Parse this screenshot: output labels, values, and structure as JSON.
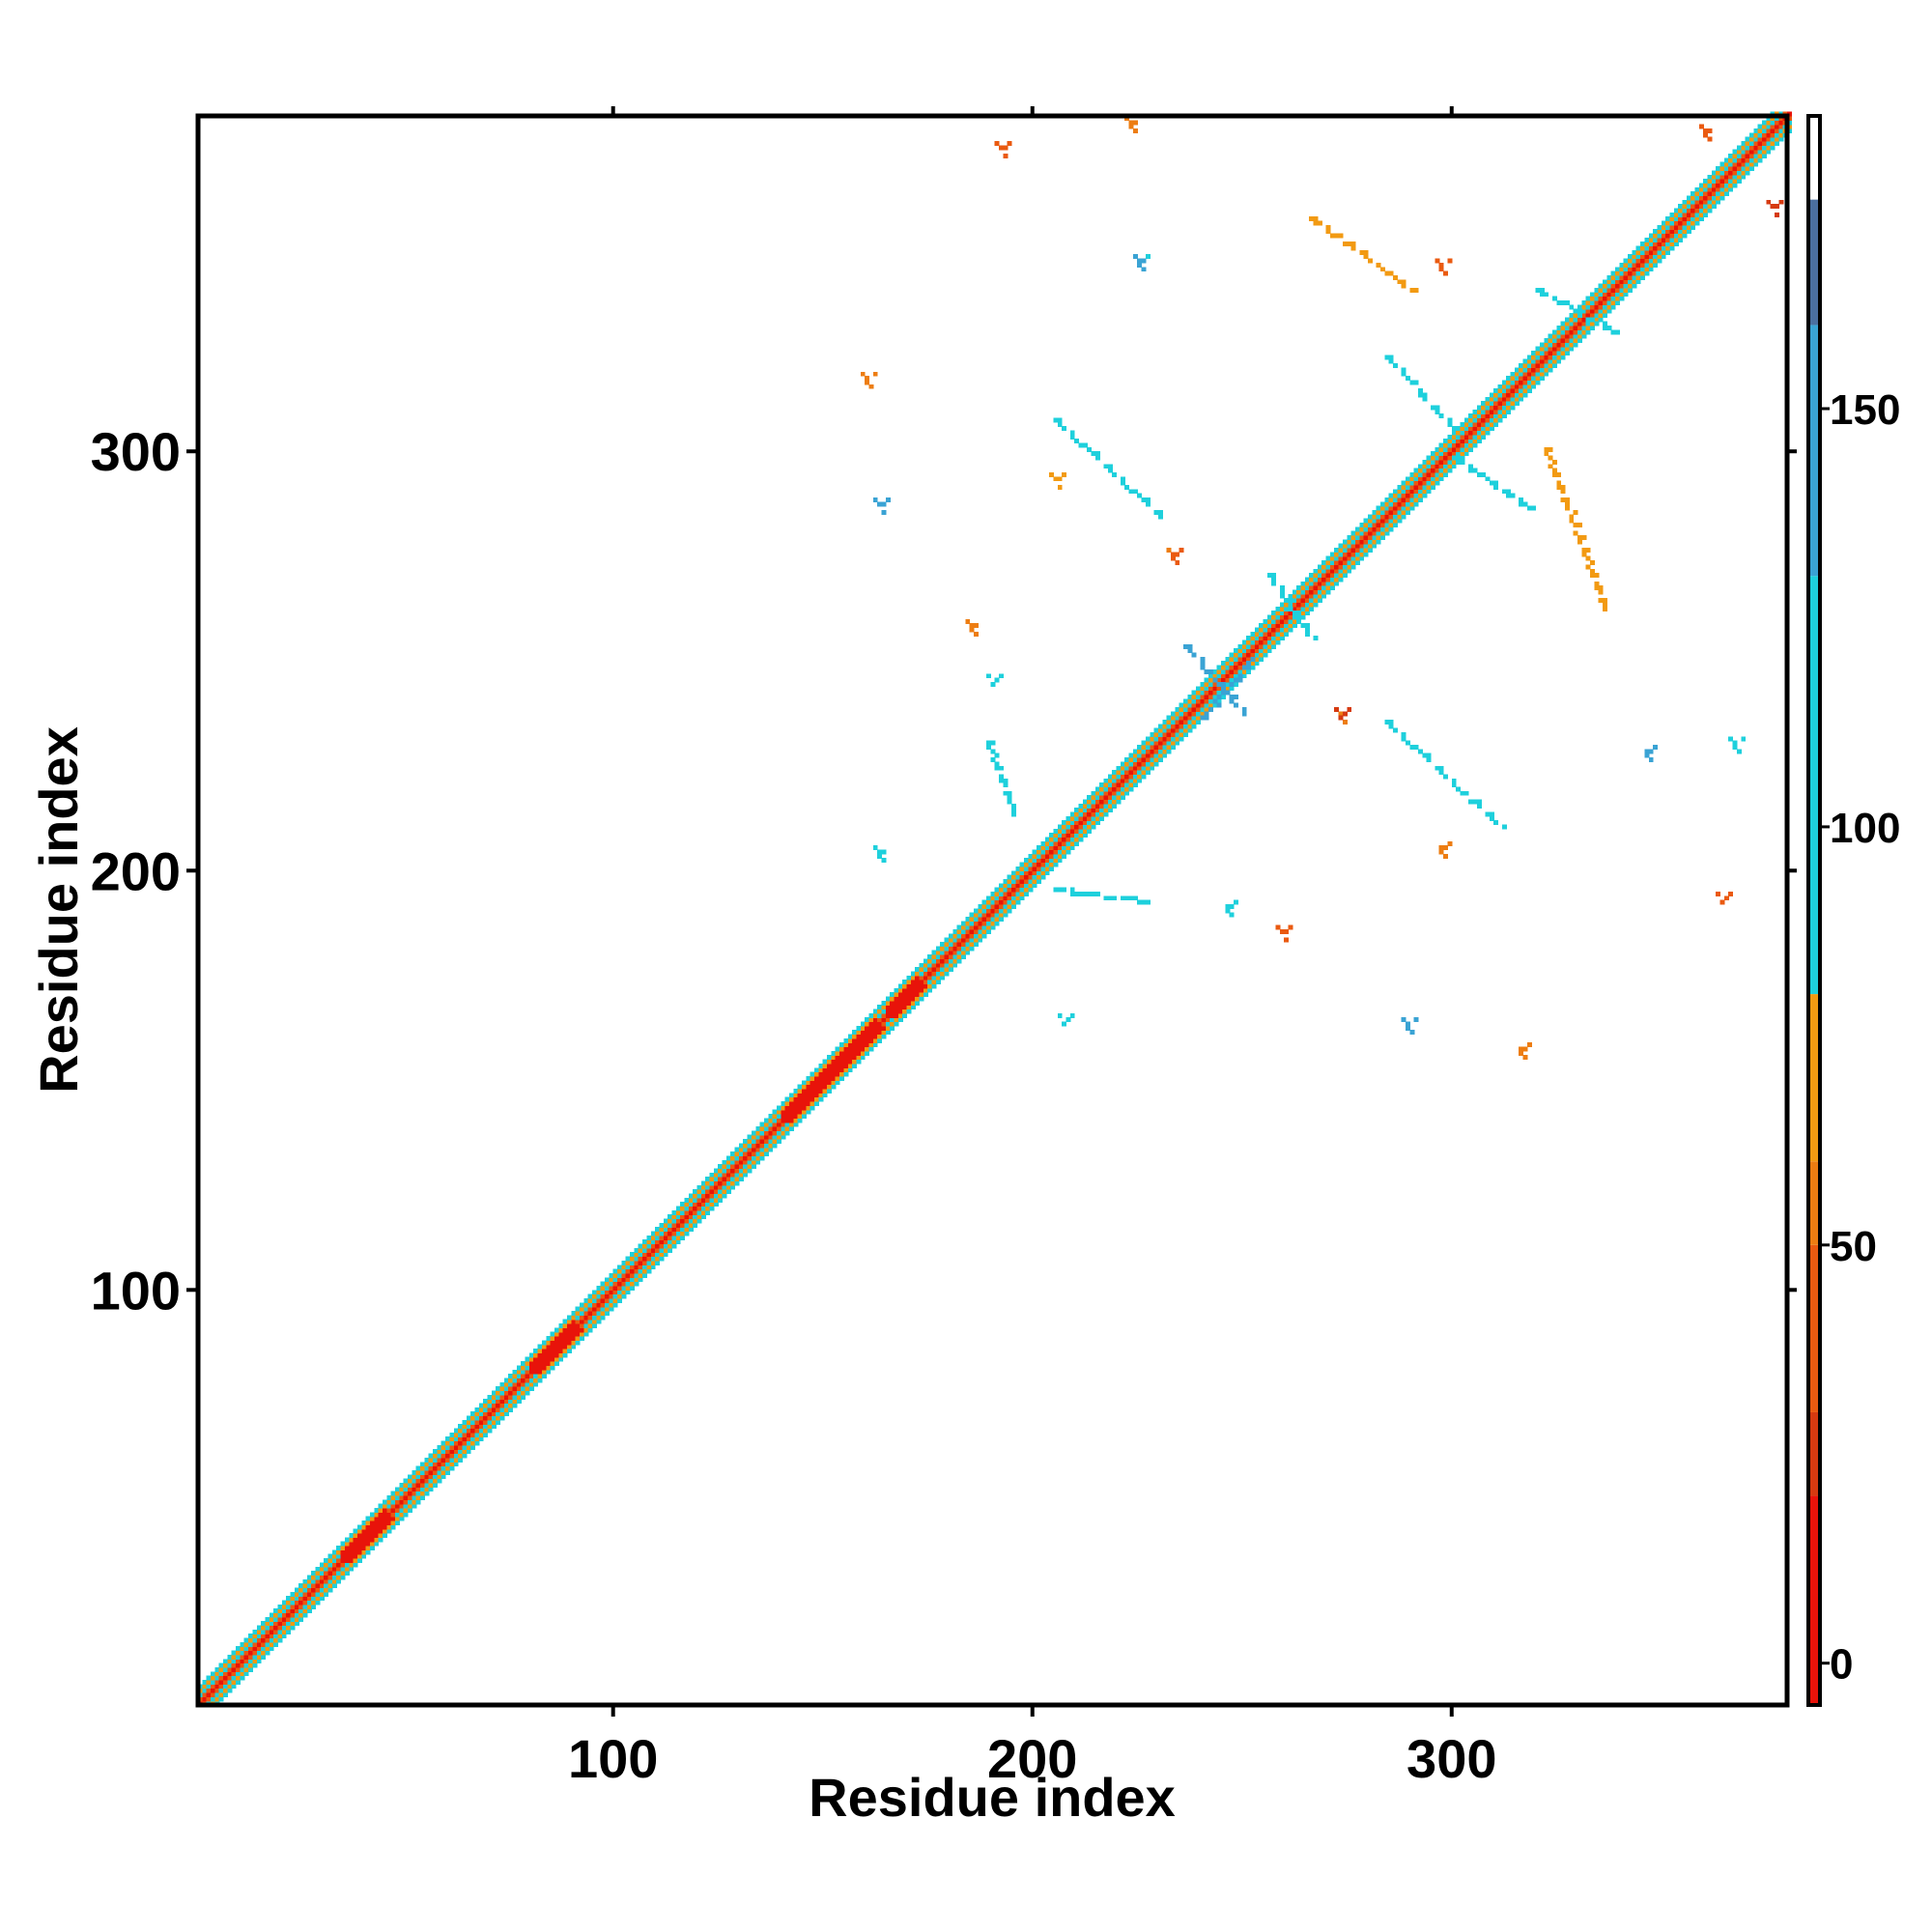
{
  "chart_data": {
    "type": "heatmap",
    "title": "",
    "xlabel": "Residue index",
    "ylabel": "Residue index",
    "xlim": [
      1,
      380
    ],
    "ylim": [
      1,
      380
    ],
    "x_ticks": [
      100,
      200,
      300
    ],
    "y_ticks": [
      100,
      200,
      300
    ],
    "grid": false,
    "colorbar": {
      "range": [
        -5,
        185
      ],
      "ticks": [
        0,
        50,
        100,
        150
      ],
      "stops": [
        {
          "from": -5,
          "to": 20,
          "color": "#e8130a"
        },
        {
          "from": 20,
          "to": 30,
          "color": "#d63a10"
        },
        {
          "from": 30,
          "to": 50,
          "color": "#ea5a10"
        },
        {
          "from": 50,
          "to": 60,
          "color": "#ed7d12"
        },
        {
          "from": 60,
          "to": 80,
          "color": "#f29a12"
        },
        {
          "from": 80,
          "to": 130,
          "color": "#1ed0dc"
        },
        {
          "from": 130,
          "to": 160,
          "color": "#3aa3d4"
        },
        {
          "from": 160,
          "to": 175,
          "color": "#4b6fa0"
        },
        {
          "from": 175,
          "to": 185,
          "color": "#ffffff"
        }
      ]
    },
    "diagonal_band": {
      "center_value": 5,
      "offsets": [
        {
          "d": 1,
          "value": 40
        },
        {
          "d": 2,
          "value": 95
        },
        {
          "d": 3,
          "value": 65
        },
        {
          "d": 4,
          "value": 120
        }
      ]
    },
    "helix_segments": [
      [
        35,
        45
      ],
      [
        80,
        90
      ],
      [
        140,
        162
      ],
      [
        165,
        172
      ]
    ],
    "contact_lines": [
      {
        "start": [
          205,
          307
        ],
        "end": [
          230,
          284
        ],
        "value": 100
      },
      {
        "start": [
          189,
          230
        ],
        "end": [
          195,
          213
        ],
        "value": 100
      },
      {
        "start": [
          205,
          195
        ],
        "end": [
          228,
          192
        ],
        "value": 100
      },
      {
        "start": [
          284,
          235
        ],
        "end": [
          311,
          210
        ],
        "value": 105
      },
      {
        "start": [
          266,
          355
        ],
        "end": [
          290,
          338
        ],
        "value": 70
      },
      {
        "start": [
          284,
          322
        ],
        "end": [
          300,
          305
        ],
        "value": 110
      },
      {
        "start": [
          300,
          298
        ],
        "end": [
          318,
          286
        ],
        "value": 100
      },
      {
        "start": [
          322,
          300
        ],
        "end": [
          336,
          262
        ],
        "value": 65
      },
      {
        "start": [
          320,
          338
        ],
        "end": [
          338,
          328
        ],
        "value": 120
      },
      {
        "start": [
          236,
          253
        ],
        "end": [
          250,
          237
        ],
        "value": 140
      },
      {
        "start": [
          240,
          236
        ],
        "end": [
          252,
          250
        ],
        "value": 140
      },
      {
        "start": [
          256,
          270
        ],
        "end": [
          266,
          255
        ],
        "value": 110
      }
    ],
    "contact_blobs": [
      {
        "x": 225,
        "y": 345,
        "value": 115
      },
      {
        "x": 225,
        "y": 345,
        "value": 150
      },
      {
        "x": 163,
        "y": 287,
        "value": 140
      },
      {
        "x": 160,
        "y": 317,
        "value": 60
      },
      {
        "x": 233,
        "y": 275,
        "value": 60
      },
      {
        "x": 233,
        "y": 275,
        "value": 35
      },
      {
        "x": 185,
        "y": 258,
        "value": 60
      },
      {
        "x": 205,
        "y": 293,
        "value": 65
      },
      {
        "x": 273,
        "y": 237,
        "value": 55
      },
      {
        "x": 273,
        "y": 237,
        "value": 30
      },
      {
        "x": 346,
        "y": 228,
        "value": 140
      },
      {
        "x": 163,
        "y": 204,
        "value": 100
      },
      {
        "x": 259,
        "y": 185,
        "value": 45
      },
      {
        "x": 289,
        "y": 163,
        "value": 150
      },
      {
        "x": 207,
        "y": 164,
        "value": 100
      },
      {
        "x": 316,
        "y": 157,
        "value": 60
      },
      {
        "x": 223,
        "y": 378,
        "value": 60
      },
      {
        "x": 192,
        "y": 372,
        "value": 45
      },
      {
        "x": 367,
        "y": 230,
        "value": 100
      },
      {
        "x": 364,
        "y": 193,
        "value": 45
      },
      {
        "x": 297,
        "y": 205,
        "value": 55
      },
      {
        "x": 360,
        "y": 376,
        "value": 35
      },
      {
        "x": 376,
        "y": 358,
        "value": 30
      },
      {
        "x": 297,
        "y": 344,
        "value": 45
      },
      {
        "x": 190,
        "y": 245,
        "value": 100
      },
      {
        "x": 246,
        "y": 191,
        "value": 100
      }
    ]
  }
}
